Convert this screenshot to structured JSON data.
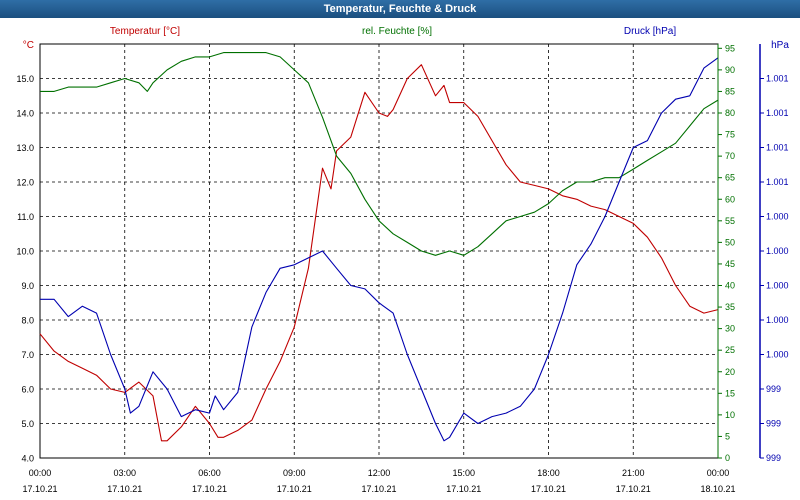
{
  "window": {
    "title": "Temperatur, Feuchte & Druck"
  },
  "colors": {
    "temperature": "#c00000",
    "humidity": "#007000",
    "pressure": "#0000b0",
    "grid": "#000000",
    "axis_text": "#000000"
  },
  "chart_data": {
    "type": "line",
    "title": "Temperatur, Feuchte & Druck",
    "grid": true,
    "legend": "top",
    "x_ticks": [
      {
        "hour": 0,
        "time": "00:00",
        "date": "17.10.21"
      },
      {
        "hour": 3,
        "time": "03:00",
        "date": "17.10.21"
      },
      {
        "hour": 6,
        "time": "06:00",
        "date": "17.10.21"
      },
      {
        "hour": 9,
        "time": "09:00",
        "date": "17.10.21"
      },
      {
        "hour": 12,
        "time": "12:00",
        "date": "17.10.21"
      },
      {
        "hour": 15,
        "time": "15:00",
        "date": "17.10.21"
      },
      {
        "hour": 18,
        "time": "18:00",
        "date": "17.10.21"
      },
      {
        "hour": 21,
        "time": "21:00",
        "date": "17.10.21"
      },
      {
        "hour": 24,
        "time": "00:00",
        "date": "18.10.21"
      }
    ],
    "xlim": [
      0,
      24
    ],
    "axes": {
      "temperature": {
        "label": "Temperatur [°C]",
        "unit": "°C",
        "min": 4.0,
        "max": 16.0,
        "ticks": [
          {
            "v": 4.0,
            "label": "4.0"
          },
          {
            "v": 5.0,
            "label": "5.0"
          },
          {
            "v": 6.0,
            "label": "6.0"
          },
          {
            "v": 7.0,
            "label": "7.0"
          },
          {
            "v": 8.0,
            "label": "8.0"
          },
          {
            "v": 9.0,
            "label": "9.0"
          },
          {
            "v": 10.0,
            "label": "10.0"
          },
          {
            "v": 11.0,
            "label": "11.0"
          },
          {
            "v": 12.0,
            "label": "12.0"
          },
          {
            "v": 13.0,
            "label": "13.0"
          },
          {
            "v": 14.0,
            "label": "14.0"
          },
          {
            "v": 15.0,
            "label": "15.0"
          }
        ]
      },
      "humidity": {
        "label": "rel. Feuchte [%]",
        "unit": "%",
        "min": 0,
        "max": 96,
        "ticks": [
          {
            "v": 0,
            "label": "0"
          },
          {
            "v": 5,
            "label": "5"
          },
          {
            "v": 10,
            "label": "10"
          },
          {
            "v": 15,
            "label": "15"
          },
          {
            "v": 20,
            "label": "20"
          },
          {
            "v": 25,
            "label": "25"
          },
          {
            "v": 30,
            "label": "30"
          },
          {
            "v": 35,
            "label": "35"
          },
          {
            "v": 40,
            "label": "40"
          },
          {
            "v": 45,
            "label": "45"
          },
          {
            "v": 50,
            "label": "50"
          },
          {
            "v": 55,
            "label": "55"
          },
          {
            "v": 60,
            "label": "60"
          },
          {
            "v": 65,
            "label": "65"
          },
          {
            "v": 70,
            "label": "70"
          },
          {
            "v": 75,
            "label": "75"
          },
          {
            "v": 80,
            "label": "80"
          },
          {
            "v": 85,
            "label": "85"
          },
          {
            "v": 90,
            "label": "90"
          },
          {
            "v": 95,
            "label": "95"
          }
        ]
      },
      "pressure": {
        "label": "Druck [hPa]",
        "unit": "hPa",
        "min": 0,
        "max": 12,
        "ticks": [
          {
            "v": 0,
            "label": "999"
          },
          {
            "v": 1,
            "label": "999"
          },
          {
            "v": 2,
            "label": "999"
          },
          {
            "v": 3,
            "label": "1.000"
          },
          {
            "v": 4,
            "label": "1.000"
          },
          {
            "v": 5,
            "label": "1.000"
          },
          {
            "v": 6,
            "label": "1.000"
          },
          {
            "v": 7,
            "label": "1.000"
          },
          {
            "v": 8,
            "label": "1.001"
          },
          {
            "v": 9,
            "label": "1.001"
          },
          {
            "v": 10,
            "label": "1.001"
          },
          {
            "v": 11,
            "label": "1.001"
          }
        ]
      }
    },
    "series": [
      {
        "name": "Temperatur [°C]",
        "axis": "temperature",
        "x": [
          0,
          0.5,
          1,
          1.5,
          2,
          2.5,
          3,
          3.5,
          4,
          4.3,
          4.5,
          5,
          5.5,
          6,
          6.3,
          6.5,
          7,
          7.5,
          8,
          8.5,
          9,
          9.5,
          10,
          10.3,
          10.5,
          11,
          11.5,
          12,
          12.3,
          12.5,
          13,
          13.5,
          14,
          14.3,
          14.5,
          15,
          15.5,
          16,
          16.5,
          17,
          17.5,
          18,
          18.5,
          19,
          19.5,
          20,
          20.5,
          21,
          21.5,
          22,
          22.5,
          23,
          23.5,
          24
        ],
        "y": [
          7.6,
          7.1,
          6.8,
          6.6,
          6.4,
          6.0,
          5.9,
          6.2,
          5.8,
          4.5,
          4.5,
          4.9,
          5.5,
          5.0,
          4.6,
          4.6,
          4.8,
          5.1,
          6.0,
          6.8,
          7.8,
          9.5,
          12.4,
          11.8,
          12.9,
          13.3,
          14.6,
          14.0,
          13.9,
          14.1,
          15.0,
          15.4,
          14.5,
          14.8,
          14.3,
          14.3,
          13.9,
          13.2,
          12.5,
          12.0,
          11.9,
          11.8,
          11.6,
          11.5,
          11.3,
          11.2,
          11.0,
          10.8,
          10.4,
          9.8,
          9.0,
          8.4,
          8.2,
          8.3
        ]
      },
      {
        "name": "rel. Feuchte [%]",
        "axis": "humidity",
        "x": [
          0,
          0.5,
          1,
          1.5,
          2,
          2.5,
          3,
          3.5,
          3.8,
          4,
          4.5,
          5,
          5.5,
          6,
          6.5,
          7,
          7.5,
          8,
          8.5,
          9,
          9.5,
          10,
          10.5,
          11,
          11.5,
          12,
          12.5,
          13,
          13.5,
          14,
          14.5,
          15,
          15.5,
          16,
          16.5,
          17,
          17.5,
          18,
          18.5,
          19,
          19.5,
          20,
          20.5,
          21,
          21.5,
          22,
          22.5,
          23,
          23.5,
          24
        ],
        "y": [
          85,
          85,
          86,
          86,
          86,
          87,
          88,
          87,
          85,
          87,
          90,
          92,
          93,
          93,
          94,
          94,
          94,
          94,
          93,
          90,
          87,
          79,
          70,
          66,
          60,
          55,
          52,
          50,
          48,
          47,
          48,
          47,
          49,
          52,
          55,
          56,
          57,
          59,
          62,
          64,
          64,
          65,
          65,
          67,
          69,
          71,
          73,
          77,
          81,
          83
        ]
      },
      {
        "name": "Druck [hPa]",
        "axis": "pressure",
        "x": [
          0,
          0.5,
          1,
          1.5,
          2,
          2.5,
          3,
          3.2,
          3.5,
          4,
          4.5,
          5,
          5.5,
          6,
          6.2,
          6.5,
          7,
          7.5,
          8,
          8.5,
          9,
          9.5,
          10,
          10.5,
          11,
          11.5,
          12,
          12.5,
          13,
          13.5,
          14,
          14.3,
          14.5,
          15,
          15.5,
          16,
          16.5,
          17,
          17.5,
          18,
          18.5,
          19,
          19.5,
          20,
          20.5,
          21,
          21.5,
          22,
          22.5,
          23,
          23.5,
          24
        ],
        "y": [
          4.6,
          4.6,
          4.1,
          4.4,
          4.2,
          3.0,
          2.0,
          1.3,
          1.5,
          2.5,
          2.0,
          1.2,
          1.4,
          1.3,
          1.8,
          1.4,
          1.9,
          3.8,
          4.8,
          5.5,
          5.6,
          5.8,
          6.0,
          5.5,
          5.0,
          4.9,
          4.5,
          4.2,
          3.0,
          2.0,
          1.0,
          0.5,
          0.6,
          1.3,
          1.0,
          1.2,
          1.3,
          1.5,
          2.0,
          3.0,
          4.2,
          5.6,
          6.2,
          7.0,
          8.0,
          9.0,
          9.2,
          10.0,
          10.4,
          10.5,
          11.3,
          11.6
        ]
      }
    ]
  }
}
